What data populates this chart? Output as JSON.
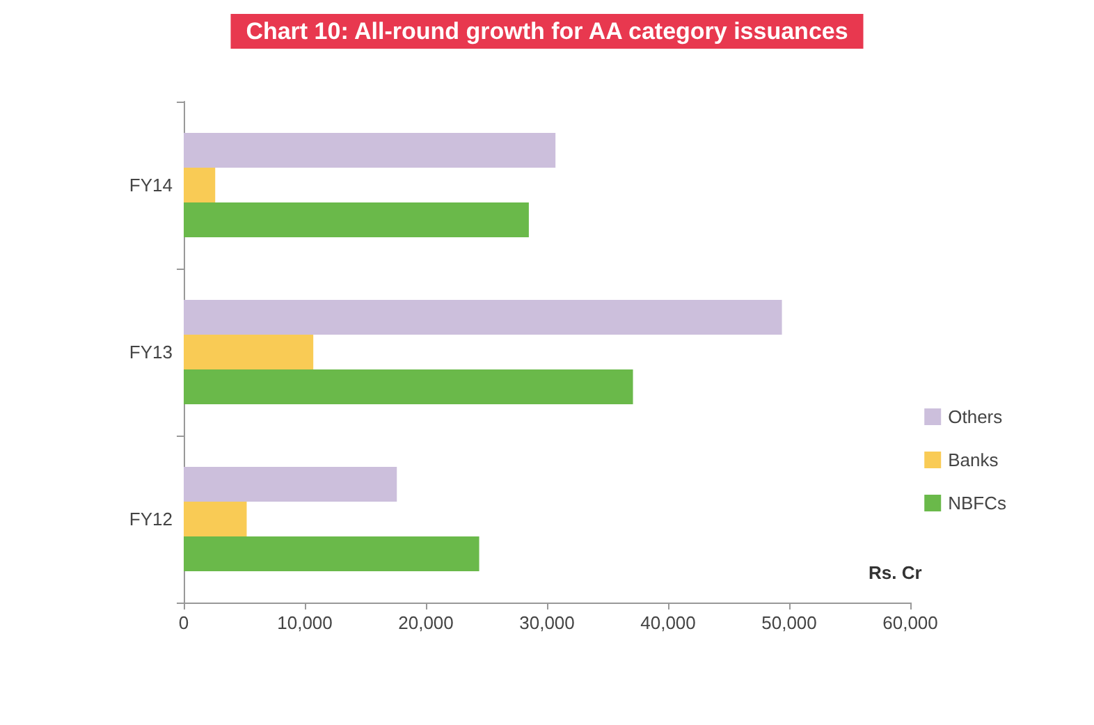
{
  "chart_data": {
    "type": "bar",
    "orientation": "horizontal",
    "title": "Chart 10: All-round growth for AA category issuances",
    "xlabel": "Rs. Cr",
    "categories": [
      "FY14",
      "FY13",
      "FY12"
    ],
    "series": [
      {
        "name": "Others",
        "color": "#ccbfdc",
        "values": [
          30700,
          49400,
          17600
        ]
      },
      {
        "name": "Banks",
        "color": "#f9cb55",
        "values": [
          2600,
          10700,
          5200
        ]
      },
      {
        "name": "NBFCs",
        "color": "#6ab94a",
        "values": [
          28500,
          37100,
          24400
        ]
      }
    ],
    "xlim": [
      0,
      60000
    ],
    "xticks": [
      {
        "value": 0,
        "label": "0"
      },
      {
        "value": 10000,
        "label": "10,000"
      },
      {
        "value": 20000,
        "label": "20,000"
      },
      {
        "value": 30000,
        "label": "30,000"
      },
      {
        "value": 40000,
        "label": "40,000"
      },
      {
        "value": 50000,
        "label": "50,000"
      },
      {
        "value": 60000,
        "label": "60,000"
      }
    ],
    "grid": false,
    "legend": "right"
  }
}
